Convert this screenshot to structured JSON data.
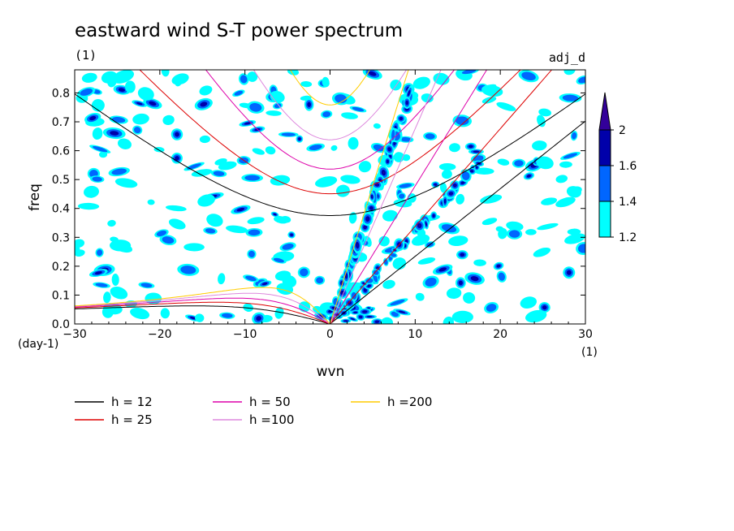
{
  "chart_data": {
    "type": "heatmap",
    "title": "eastward wind S-T power spectrum",
    "subtitle_left": "(1)",
    "subtitle_right": "adj_d",
    "xlabel": "wvn",
    "ylabel": "freq",
    "x_unit": "(1)",
    "y_unit": "(day-1)",
    "xlim": [
      -30,
      30
    ],
    "ylim": [
      0,
      0.88
    ],
    "xticks": [
      -30,
      -20,
      -10,
      0,
      10,
      20,
      30
    ],
    "yticks": [
      0.0,
      0.1,
      0.2,
      0.3,
      0.4,
      0.5,
      0.6,
      0.7,
      0.8
    ],
    "xtick_labels": [
      "-30",
      "-20",
      "-10",
      "0",
      "10",
      "20",
      "30"
    ],
    "ytick_labels": [
      "0.0",
      "0.1",
      "0.2",
      "0.3",
      "0.4",
      "0.5",
      "0.6",
      "0.7",
      "0.8"
    ],
    "colorbar": {
      "levels": [
        1.2,
        1.4,
        1.6,
        2
      ],
      "labels": [
        "1.2",
        "1.4",
        "1.6",
        "2"
      ],
      "colors": [
        "#00ffff",
        "#0066ff",
        "#0000aa",
        "#330099"
      ]
    },
    "dispersion_curves": [
      {
        "name": "h = 12",
        "h": 12,
        "color": "#000000"
      },
      {
        "name": "h = 25",
        "h": 25,
        "color": "#dd0000"
      },
      {
        "name": "h = 50",
        "h": 50,
        "color": "#dd00aa"
      },
      {
        "name": "h =100",
        "h": 100,
        "color": "#dd88dd"
      },
      {
        "name": "h =200",
        "h": 200,
        "color": "#ffcc00"
      }
    ]
  }
}
